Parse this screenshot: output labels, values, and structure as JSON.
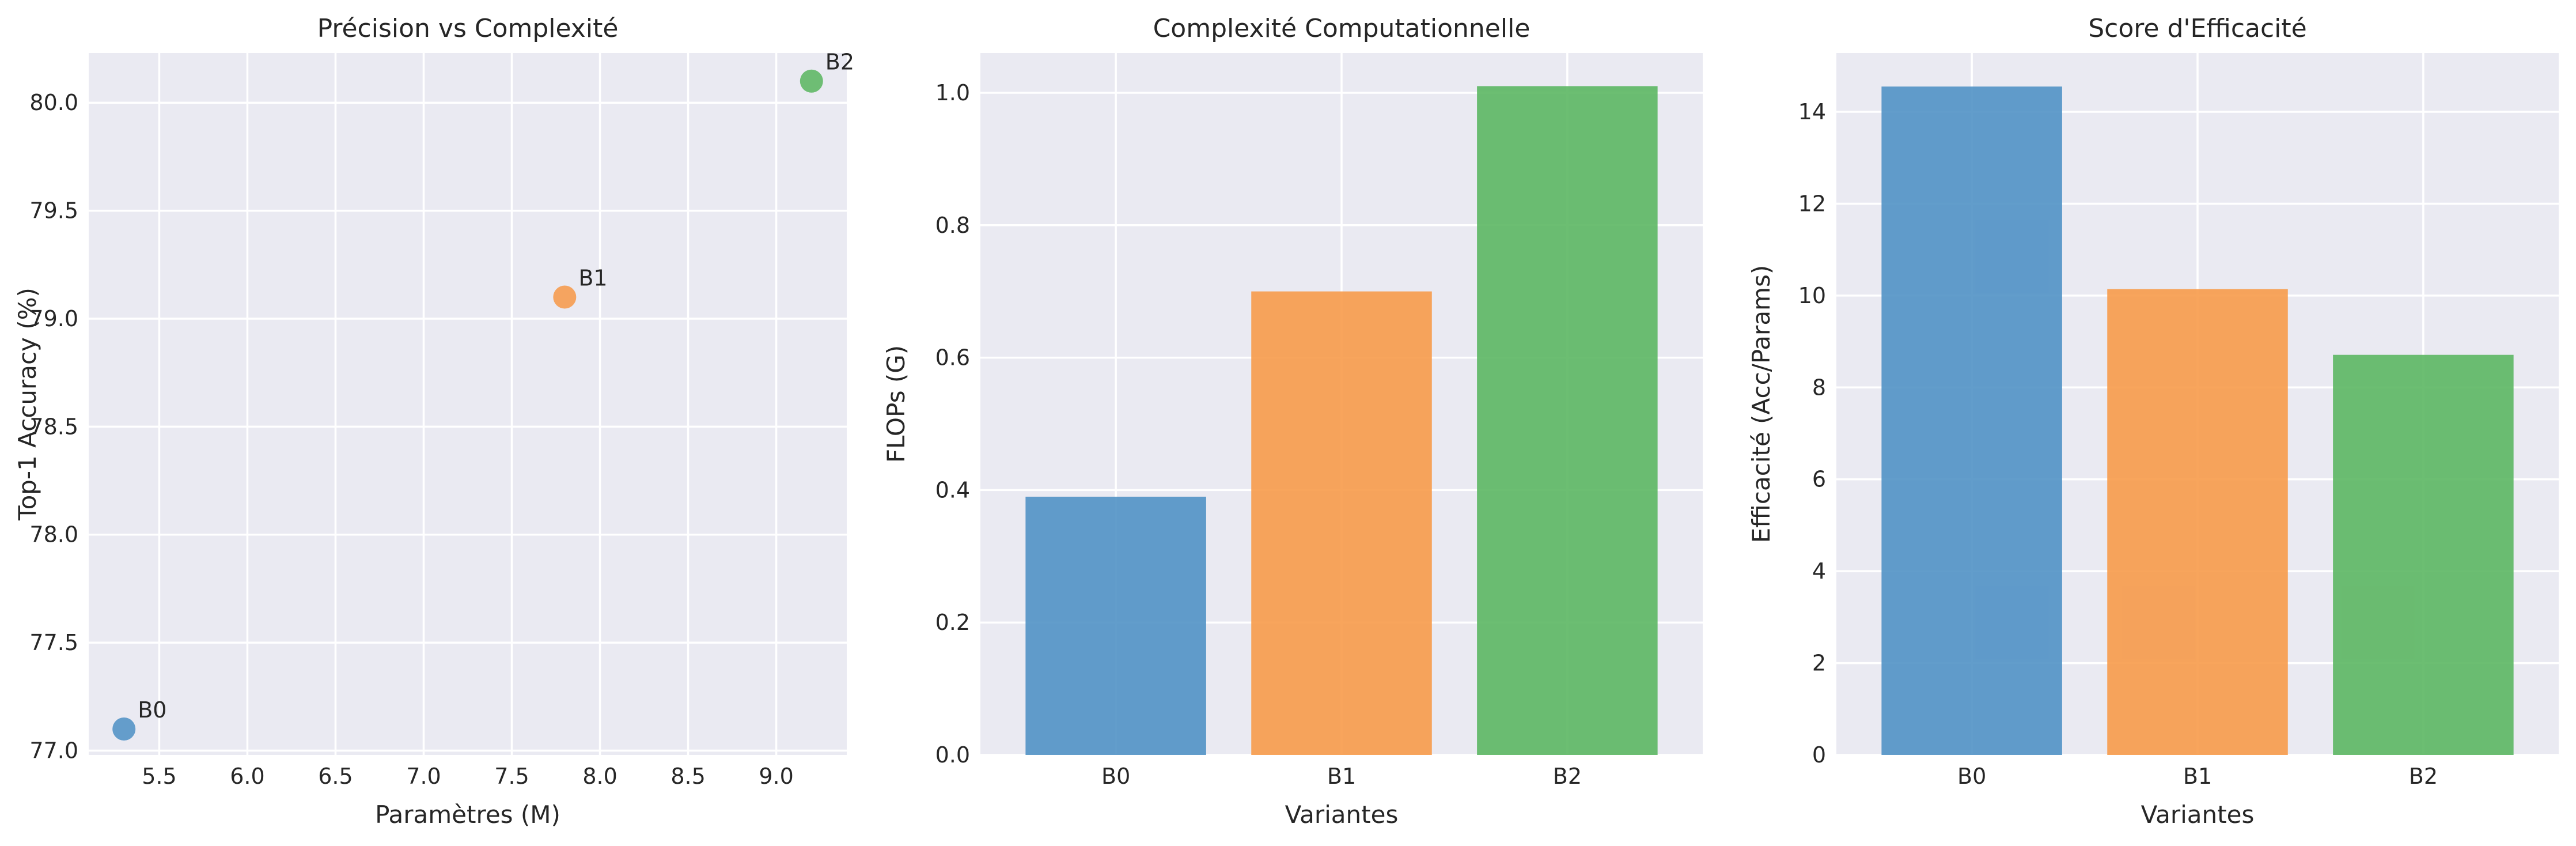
{
  "colors": {
    "background": "#ffffff",
    "plot_background": "#eaeaf2",
    "grid": "#ffffff",
    "text": "#262626",
    "B0": "#4c8fc4",
    "B1": "#f79846",
    "B2": "#58b55e"
  },
  "chart_data": [
    {
      "type": "scatter",
      "title": "Précision vs Complexité",
      "xlabel": "Paramètres (M)",
      "ylabel": "Top-1 Accuracy (%)",
      "xlim": [
        5.1,
        9.4
      ],
      "ylim": [
        76.98,
        80.23
      ],
      "grid": true,
      "xticks": [
        5.5,
        6.0,
        6.5,
        7.0,
        7.5,
        8.0,
        8.5,
        9.0
      ],
      "xtick_labels": [
        "5.5",
        "6.0",
        "6.5",
        "7.0",
        "7.5",
        "8.0",
        "8.5",
        "9.0"
      ],
      "yticks": [
        77.0,
        77.5,
        78.0,
        78.5,
        79.0,
        79.5,
        80.0
      ],
      "ytick_labels": [
        "77.0",
        "77.5",
        "78.0",
        "78.5",
        "79.0",
        "79.5",
        "80.0"
      ],
      "points": [
        {
          "label": "B0",
          "x": 5.3,
          "y": 77.1,
          "color": "#4c8fc4"
        },
        {
          "label": "B1",
          "x": 7.8,
          "y": 79.1,
          "color": "#f79846"
        },
        {
          "label": "B2",
          "x": 9.2,
          "y": 80.1,
          "color": "#58b55e"
        }
      ]
    },
    {
      "type": "bar",
      "title": "Complexité Computationnelle",
      "xlabel": "Variantes",
      "ylabel": "FLOPs (G)",
      "categories": [
        "B0",
        "B1",
        "B2"
      ],
      "values": [
        0.39,
        0.7,
        1.01
      ],
      "colors": [
        "#4c8fc4",
        "#f79846",
        "#58b55e"
      ],
      "ylim": [
        0,
        1.06
      ],
      "grid": true,
      "yticks": [
        0.0,
        0.2,
        0.4,
        0.6,
        0.8,
        1.0
      ],
      "ytick_labels": [
        "0.0",
        "0.2",
        "0.4",
        "0.6",
        "0.8",
        "1.0"
      ]
    },
    {
      "type": "bar",
      "title": "Score d'Efficacité",
      "xlabel": "Variantes",
      "ylabel": "Efficacité (Acc/Params)",
      "categories": [
        "B0",
        "B1",
        "B2"
      ],
      "values": [
        14.55,
        10.14,
        8.71
      ],
      "colors": [
        "#4c8fc4",
        "#f79846",
        "#58b55e"
      ],
      "ylim": [
        0,
        15.28
      ],
      "grid": true,
      "yticks": [
        0,
        2,
        4,
        6,
        8,
        10,
        12,
        14
      ],
      "ytick_labels": [
        "0",
        "2",
        "4",
        "6",
        "8",
        "10",
        "12",
        "14"
      ]
    }
  ]
}
